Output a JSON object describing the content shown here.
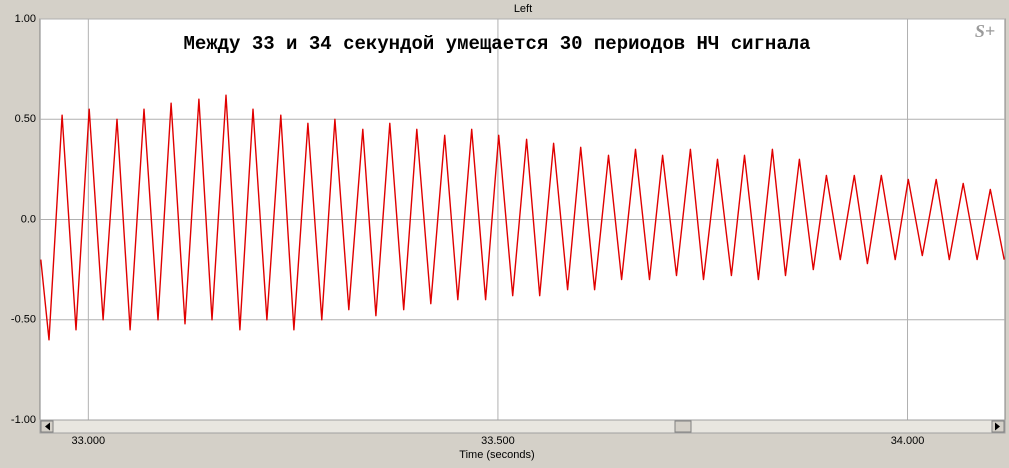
{
  "chart_data": {
    "type": "line",
    "title": "Left",
    "annotations": [
      "Между 33 и 34 секундой умещается 30 периодов НЧ сигнала",
      "S+"
    ],
    "x_label": "Time (seconds)",
    "color": "#e00000",
    "grid": true,
    "xlim": [
      32.941,
      34.119
    ],
    "ylim": [
      -1,
      1
    ],
    "xticks": [
      {
        "value": 33,
        "label": "33.000"
      },
      {
        "value": 33.5,
        "label": "33.500"
      },
      {
        "value": 34,
        "label": "34.000"
      }
    ],
    "yticks": [
      {
        "value": 1,
        "label": "1.00"
      },
      {
        "value": 0.5,
        "label": "0.50"
      },
      {
        "value": 0,
        "label": "0.0"
      },
      {
        "value": -0.5,
        "label": "-0.50"
      },
      {
        "value": -1,
        "label": "-1.00"
      }
    ],
    "x": [
      32.942,
      32.952,
      32.968,
      32.985,
      33.001,
      33.018,
      33.035,
      33.051,
      33.068,
      33.085,
      33.101,
      33.118,
      33.135,
      33.151,
      33.168,
      33.185,
      33.201,
      33.218,
      33.235,
      33.251,
      33.268,
      33.285,
      33.301,
      33.318,
      33.335,
      33.351,
      33.368,
      33.385,
      33.401,
      33.418,
      33.435,
      33.451,
      33.468,
      33.485,
      33.501,
      33.518,
      33.535,
      33.551,
      33.568,
      33.585,
      33.601,
      33.618,
      33.635,
      33.651,
      33.668,
      33.685,
      33.701,
      33.718,
      33.735,
      33.751,
      33.768,
      33.785,
      33.801,
      33.818,
      33.835,
      33.851,
      33.868,
      33.885,
      33.901,
      33.918,
      33.935,
      33.951,
      33.968,
      33.985,
      34.001,
      34.018,
      34.035,
      34.051,
      34.068,
      34.085,
      34.101,
      34.118
    ],
    "values": [
      -0.2,
      -0.6,
      0.52,
      -0.55,
      0.55,
      -0.5,
      0.5,
      -0.55,
      0.55,
      -0.5,
      0.58,
      -0.52,
      0.6,
      -0.5,
      0.62,
      -0.55,
      0.55,
      -0.5,
      0.52,
      -0.55,
      0.48,
      -0.5,
      0.5,
      -0.45,
      0.45,
      -0.48,
      0.48,
      -0.45,
      0.45,
      -0.42,
      0.42,
      -0.4,
      0.45,
      -0.4,
      0.42,
      -0.38,
      0.4,
      -0.38,
      0.38,
      -0.35,
      0.36,
      -0.35,
      0.32,
      -0.3,
      0.35,
      -0.3,
      0.32,
      -0.28,
      0.35,
      -0.3,
      0.3,
      -0.28,
      0.32,
      -0.3,
      0.35,
      -0.28,
      0.3,
      -0.25,
      0.22,
      -0.2,
      0.22,
      -0.22,
      0.22,
      -0.2,
      0.2,
      -0.18,
      0.2,
      -0.2,
      0.18,
      -0.2,
      0.15,
      -0.2
    ]
  }
}
